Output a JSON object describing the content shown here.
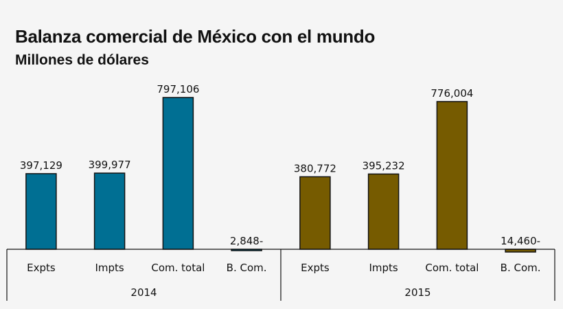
{
  "chart_data": {
    "type": "bar",
    "title": "Balanza comercial de México con el mundo",
    "subtitle": "Millones de dólares",
    "groups": [
      {
        "name": "2014",
        "color": "#006f93",
        "categories": [
          "Expts",
          "Impts",
          "Com. total",
          "B. Com."
        ],
        "values": [
          397129,
          399977,
          797106,
          -2848
        ],
        "value_labels": [
          "397,129",
          "399,977",
          "797,106",
          "2,848-"
        ]
      },
      {
        "name": "2015",
        "color": "#765b00",
        "categories": [
          "Expts",
          "Impts",
          "Com. total",
          "B. Com."
        ],
        "values": [
          380772,
          395232,
          776004,
          -14460
        ],
        "value_labels": [
          "380,772",
          "395,232",
          "776,004",
          "14,460-"
        ]
      }
    ],
    "grid": false,
    "legend": "none"
  }
}
